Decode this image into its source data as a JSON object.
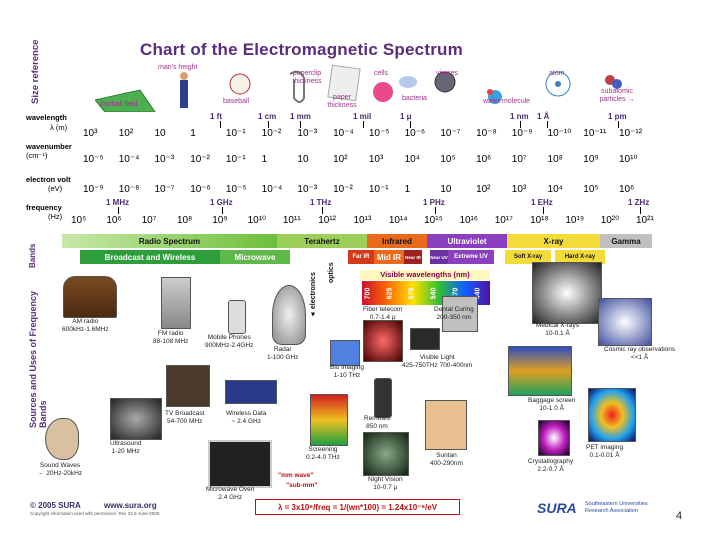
{
  "title": "Chart of the Electromagnetic Spectrum",
  "side_labels": {
    "size_reference": "Size reference",
    "bands": "Bands",
    "sources": "Sources and Uses of Frequency Bands"
  },
  "size_refs": [
    "man's height",
    "paperclip thickness",
    "cells",
    "viruses",
    "atom",
    "football field",
    "baseball",
    "paper thickness",
    "bacteria",
    "water molecule",
    "subatomic particles →"
  ],
  "rows": {
    "wavelength": {
      "label": "wavelength",
      "unit": "λ (m)",
      "named": [
        "1 ft",
        "1 cm",
        "1 mm",
        "1 mil",
        "1 μ",
        "1 nm",
        "1 Å",
        "1 pm"
      ],
      "values": [
        "10³",
        "10²",
        "10",
        "1",
        "10⁻¹",
        "10⁻²",
        "10⁻³",
        "10⁻⁴",
        "10⁻⁵",
        "10⁻⁶",
        "10⁻⁷",
        "10⁻⁸",
        "10⁻⁹",
        "10⁻¹⁰",
        "10⁻¹¹",
        "10⁻¹²"
      ]
    },
    "wavenumber": {
      "label": "wavenumber",
      "unit": "(cm⁻¹)",
      "values": [
        "10⁻⁵",
        "10⁻⁴",
        "10⁻³",
        "10⁻²",
        "10⁻¹",
        "1",
        "10",
        "10²",
        "10³",
        "10⁴",
        "10⁵",
        "10⁶",
        "10⁷",
        "10⁸",
        "10⁹",
        "10¹⁰"
      ]
    },
    "electron_volt": {
      "label": "electron volt",
      "unit": "(eV)",
      "values": [
        "10⁻⁹",
        "10⁻⁸",
        "10⁻⁷",
        "10⁻⁶",
        "10⁻⁵",
        "10⁻⁴",
        "10⁻³",
        "10⁻²",
        "10⁻¹",
        "1",
        "10",
        "10²",
        "10³",
        "10⁴",
        "10⁵",
        "10⁶"
      ]
    },
    "frequency": {
      "label": "frequency",
      "unit": "(Hz)",
      "named": [
        "1 MHz",
        "1 GHz",
        "1 THz",
        "1 PHz",
        "1 EHz",
        "1 ZHz"
      ],
      "values": [
        "10⁵",
        "10⁶",
        "10⁷",
        "10⁸",
        "10⁹",
        "10¹⁰",
        "10¹¹",
        "10¹²",
        "10¹³",
        "10¹⁴",
        "10¹⁵",
        "10¹⁶",
        "10¹⁷",
        "10¹⁸",
        "10¹⁹",
        "10²⁰",
        "10²¹"
      ]
    }
  },
  "bands_top": [
    "Radio Spectrum",
    "Terahertz",
    "Infrared",
    "Ultraviolet",
    "X-ray",
    "Gamma"
  ],
  "bands_bottom": [
    "Broadcast and Wireless",
    "Microwave",
    "Far IR",
    "Mid IR",
    "Near IR",
    "Near UV",
    "Extreme UV",
    "Soft X-ray",
    "Hard X-ray"
  ],
  "visible": {
    "label": "Visible wavelengths (nm)",
    "nm": [
      "700",
      "625",
      "575",
      "540",
      "470",
      "440"
    ]
  },
  "small_vertical": {
    "optics": "optics",
    "electronics": "◄ electronics"
  },
  "sources": [
    {
      "name": "AM radio",
      "detail": "600kHz-1.6MHz"
    },
    {
      "name": "FM radio",
      "detail": "88-108 MHz"
    },
    {
      "name": "Mobile Phones",
      "detail": "900MHz-2.4GHz"
    },
    {
      "name": "Radar",
      "detail": "1-100 GHz"
    },
    {
      "name": "TV Broadcast",
      "detail": "54-700 MHz"
    },
    {
      "name": "Wireless Data",
      "detail": "~ 2.4 GHz"
    },
    {
      "name": "Ultrasound",
      "detail": "1-20 MHz"
    },
    {
      "name": "Sound Waves",
      "detail": "← 20Hz-20kHz"
    },
    {
      "name": "Microwave Oven",
      "detail": "2.4 GHz"
    },
    {
      "name": "Screening",
      "detail": "0.2-4.0 THz"
    },
    {
      "name": "Fiber telecom",
      "detail": "0.7-1.4 μ"
    },
    {
      "name": "Dental Curing",
      "detail": "200-350 nm"
    },
    {
      "name": "Bio imaging",
      "detail": "1-10 THz"
    },
    {
      "name": "Visible Light",
      "detail": "425-750THz 700-400nm"
    },
    {
      "name": "Remotes",
      "detail": "850 nm"
    },
    {
      "name": "Night Vision",
      "detail": "10-0.7 μ"
    },
    {
      "name": "Suntan",
      "detail": "400-290nm"
    },
    {
      "name": "Medical X-rays",
      "detail": "10-0.1 Å"
    },
    {
      "name": "Baggage screen",
      "detail": "10-1.0 Å"
    },
    {
      "name": "Cosmic ray observations",
      "detail": "<<1 Å"
    },
    {
      "name": "Crystallography",
      "detail": "2.2-0.7 Å"
    },
    {
      "name": "PET imaging",
      "detail": "0.1-0.01 Å"
    }
  ],
  "microwave_notes": [
    "\"mm wave\"",
    "\"sub-mm\""
  ],
  "formula": "λ = 3x10⁸/freq = 1/(wn*100) = 1.24x10⁻⁶/eV",
  "copyright": "© 2005 SURA",
  "website": "www.sura.org",
  "fineprint": "Copyright information used with permission. Rev 22 6-June-2005",
  "org": "Southeastern Universities Research Association",
  "org_logo": "SURA",
  "page_number": "4",
  "colors": {
    "title": "#5a2d7a",
    "radio": "#6cbf3a",
    "broadcast": "#2e9e3a",
    "microwave": "#5fb84a",
    "thz": "#9ccf5a",
    "ir": "#e86a1a",
    "uv": "#8b3fbf",
    "xray": "#f3dc3a",
    "gamma": "#c0c0c0"
  }
}
